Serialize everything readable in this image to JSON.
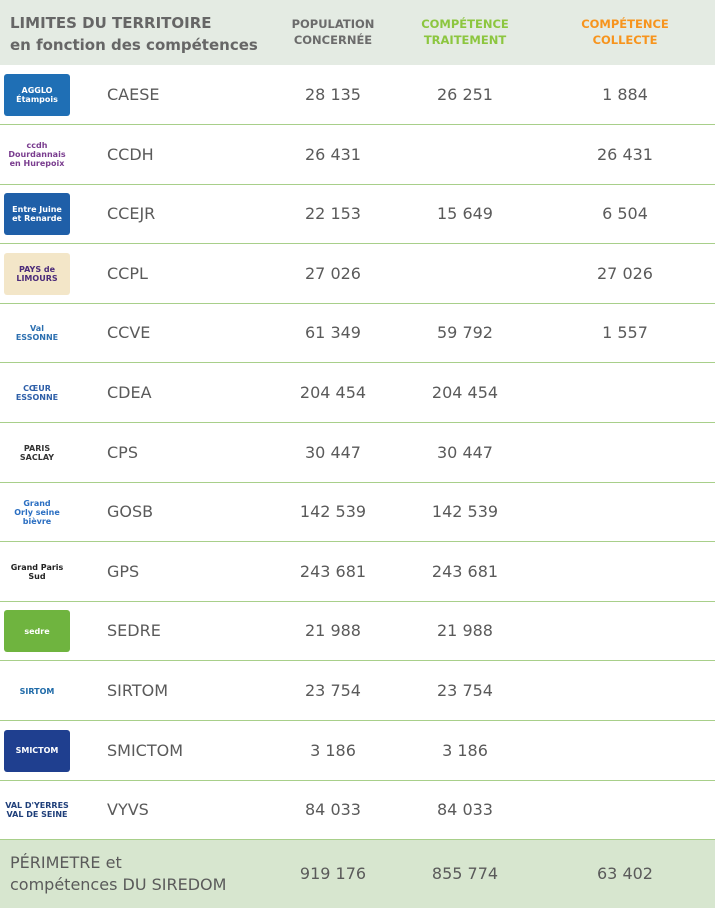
{
  "header": {
    "title": [
      "LIMITES DU TERRITOIRE",
      "en fonction des compétences"
    ],
    "columns": [
      [
        "POPULATION",
        "CONCERNÉE"
      ],
      [
        "COMPÉTENCE",
        "TRAITEMENT"
      ],
      [
        "COMPÉTENCE",
        "COLLECTE"
      ]
    ]
  },
  "table": {
    "rows": [
      {
        "logo": [
          "AGGLO",
          "Étampois"
        ],
        "name": "CAESE",
        "population": "28 135",
        "traitement": "26 251",
        "collecte": "1 884"
      },
      {
        "logo": [
          "ccdh",
          "Dourdannais",
          "en Hurepoix"
        ],
        "name": "CCDH",
        "population": "26 431",
        "traitement": null,
        "collecte": "26 431"
      },
      {
        "logo": [
          "Entre Juine",
          "et Renarde"
        ],
        "name": "CCEJR",
        "population": "22 153",
        "traitement": "15 649",
        "collecte": "6 504"
      },
      {
        "logo": [
          "PAYS de",
          "LIMOURS"
        ],
        "name": "CCPL",
        "population": "27 026",
        "traitement": null,
        "collecte": "27 026"
      },
      {
        "logo": [
          "Val",
          "ESSONNE"
        ],
        "name": "CCVE",
        "population": "61 349",
        "traitement": "59 792",
        "collecte": "1 557"
      },
      {
        "logo": [
          "CŒUR",
          "ESSONNE"
        ],
        "name": "CDEA",
        "population": "204 454",
        "traitement": "204 454",
        "collecte": null
      },
      {
        "logo": [
          "PARIS",
          "SACLAY"
        ],
        "name": "CPS",
        "population": "30 447",
        "traitement": "30 447",
        "collecte": null
      },
      {
        "logo": [
          "Grand",
          "Orly seine",
          "bièvre"
        ],
        "name": "GOSB",
        "population": "142 539",
        "traitement": "142 539",
        "collecte": null
      },
      {
        "logo": [
          "Grand Paris Sud"
        ],
        "name": "GPS",
        "population": "243 681",
        "traitement": "243 681",
        "collecte": null
      },
      {
        "logo": [
          "sedre"
        ],
        "name": "SEDRE",
        "population": "21 988",
        "traitement": "21 988",
        "collecte": null
      },
      {
        "logo": [
          "SIRTOM"
        ],
        "name": "SIRTOM",
        "population": "23 754",
        "traitement": "23 754",
        "collecte": null
      },
      {
        "logo": [
          "SMICTOM"
        ],
        "name": "SMICTOM",
        "population": "3 186",
        "traitement": "3 186",
        "collecte": null
      },
      {
        "logo": [
          "VAL D'YERRES",
          "VAL DE SEINE"
        ],
        "name": "VYVS",
        "population": "84 033",
        "traitement": "84 033",
        "collecte": null
      }
    ]
  },
  "footer": {
    "title": [
      "PÉRIMETRE et",
      "compétences DU SIREDOM"
    ],
    "population": "919 176",
    "traitement": "855 774",
    "collecte": "63 402"
  }
}
